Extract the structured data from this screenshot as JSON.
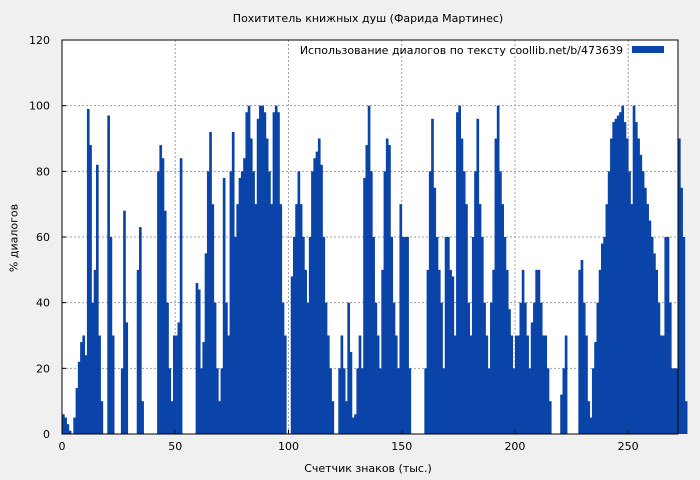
{
  "chart_data": {
    "type": "bar",
    "title": "Похититель книжных душ (Фарида Мартинес)",
    "xlabel": "Счетчик знаков (тыс.)",
    "ylabel": "% диалогов",
    "xlim": [
      0,
      272
    ],
    "ylim": [
      0,
      120
    ],
    "x_ticks": [
      0,
      50,
      100,
      150,
      200,
      250
    ],
    "y_ticks": [
      0,
      20,
      40,
      60,
      80,
      100,
      120
    ],
    "grid": true,
    "legend_position": "top-right",
    "series": [
      {
        "name": "Использование диалогов по тексту  coollib.net/b/473639",
        "color": "#0a44a8",
        "x_start": 0,
        "x_step": 1,
        "values": [
          6,
          5,
          3,
          1,
          0,
          5,
          14,
          22,
          28,
          30,
          24,
          99,
          88,
          40,
          50,
          82,
          30,
          10,
          0,
          0,
          97,
          60,
          30,
          0,
          0,
          0,
          20,
          68,
          34,
          0,
          0,
          0,
          0,
          50,
          63,
          10,
          0,
          0,
          0,
          0,
          0,
          0,
          80,
          88,
          84,
          68,
          40,
          20,
          10,
          30,
          30,
          34,
          84,
          0,
          0,
          0,
          0,
          0,
          0,
          46,
          44,
          20,
          28,
          55,
          80,
          92,
          70,
          40,
          20,
          10,
          20,
          78,
          40,
          30,
          80,
          92,
          60,
          70,
          78,
          80,
          84,
          98,
          100,
          90,
          80,
          70,
          96,
          100,
          100,
          98,
          90,
          80,
          70,
          98,
          100,
          98,
          70,
          40,
          30,
          0,
          0,
          48,
          60,
          70,
          80,
          70,
          60,
          50,
          40,
          60,
          80,
          84,
          86,
          90,
          82,
          60,
          40,
          30,
          20,
          10,
          0,
          0,
          20,
          30,
          20,
          10,
          40,
          25,
          5,
          6,
          20,
          30,
          20,
          78,
          88,
          100,
          80,
          60,
          40,
          30,
          20,
          50,
          80,
          90,
          88,
          60,
          40,
          30,
          20,
          70,
          60,
          60,
          60,
          20,
          0,
          0,
          0,
          0,
          0,
          0,
          20,
          50,
          80,
          96,
          75,
          60,
          50,
          40,
          20,
          60,
          60,
          50,
          48,
          30,
          98,
          100,
          90,
          80,
          70,
          40,
          30,
          60,
          80,
          96,
          70,
          60,
          40,
          30,
          20,
          40,
          50,
          90,
          100,
          80,
          70,
          60,
          50,
          38,
          30,
          20,
          30,
          30,
          40,
          50,
          40,
          30,
          20,
          34,
          40,
          50,
          50,
          40,
          30,
          30,
          20,
          10,
          0,
          0,
          0,
          0,
          12,
          20,
          30,
          0,
          0,
          0,
          0,
          0,
          50,
          53,
          40,
          30,
          10,
          5,
          20,
          28,
          40,
          50,
          58,
          60,
          70,
          80,
          90,
          95,
          96,
          97,
          98,
          100,
          95,
          90,
          80,
          70,
          100,
          95,
          90,
          85,
          80,
          75,
          70,
          65,
          60,
          55,
          50,
          40,
          30,
          30,
          60,
          60,
          40,
          20,
          20,
          20,
          90,
          75,
          60,
          10
        ]
      }
    ]
  }
}
